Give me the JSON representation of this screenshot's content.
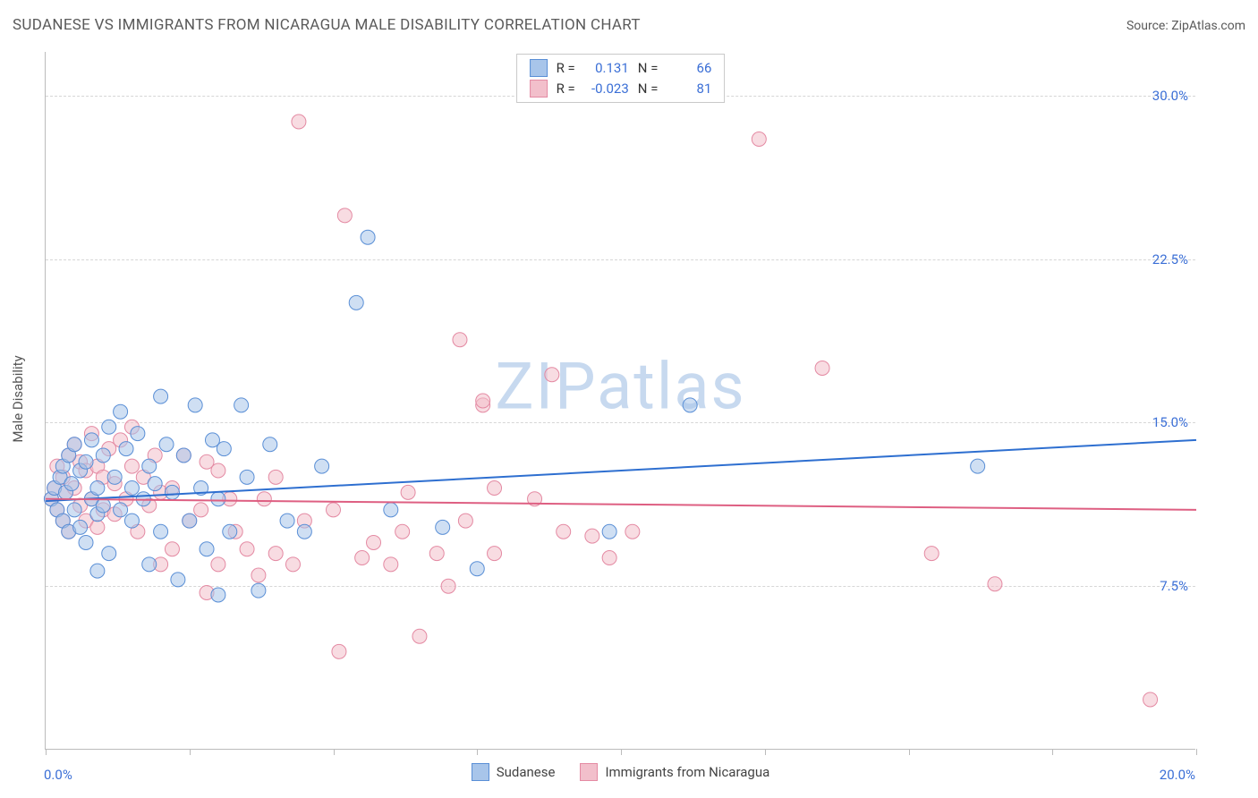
{
  "title": "SUDANESE VS IMMIGRANTS FROM NICARAGUA MALE DISABILITY CORRELATION CHART",
  "source": "Source: ZipAtlas.com",
  "watermark": "ZIPatlas",
  "y_axis_title": "Male Disability",
  "chart": {
    "type": "scatter",
    "xlim": [
      0,
      20
    ],
    "ylim": [
      0,
      32
    ],
    "x_ticks": [
      0,
      2.5,
      5,
      7.5,
      10,
      12.5,
      15,
      17.5,
      20
    ],
    "x_tick_labels_shown": {
      "0": "0.0%",
      "20": "20.0%"
    },
    "y_grid": [
      7.5,
      15.0,
      22.5,
      30.0
    ],
    "y_tick_labels": [
      "7.5%",
      "15.0%",
      "22.5%",
      "30.0%"
    ],
    "background_color": "#ffffff",
    "grid_color": "#d6d6d6",
    "axis_color": "#bbbbbb",
    "tick_label_color": "#3b6fd6",
    "marker_radius": 8,
    "marker_opacity": 0.55,
    "line_width": 2,
    "series": [
      {
        "name": "Sudanese",
        "color_fill": "#a8c5ea",
        "color_stroke": "#5a8fd6",
        "line_color": "#2e6fd0",
        "R": "0.131",
        "N": "66",
        "trend": {
          "x1": 0,
          "y1": 11.4,
          "x2": 20,
          "y2": 14.2
        },
        "points": [
          [
            0.1,
            11.5
          ],
          [
            0.15,
            12.0
          ],
          [
            0.2,
            11.0
          ],
          [
            0.25,
            12.5
          ],
          [
            0.3,
            10.5
          ],
          [
            0.3,
            13.0
          ],
          [
            0.35,
            11.8
          ],
          [
            0.4,
            10.0
          ],
          [
            0.4,
            13.5
          ],
          [
            0.45,
            12.2
          ],
          [
            0.5,
            11.0
          ],
          [
            0.5,
            14.0
          ],
          [
            0.6,
            10.2
          ],
          [
            0.6,
            12.8
          ],
          [
            0.7,
            13.2
          ],
          [
            0.7,
            9.5
          ],
          [
            0.8,
            11.5
          ],
          [
            0.8,
            14.2
          ],
          [
            0.9,
            12.0
          ],
          [
            0.9,
            10.8
          ],
          [
            1.0,
            13.5
          ],
          [
            1.0,
            11.2
          ],
          [
            1.1,
            14.8
          ],
          [
            1.1,
            9.0
          ],
          [
            1.2,
            12.5
          ],
          [
            1.3,
            11.0
          ],
          [
            1.3,
            15.5
          ],
          [
            1.4,
            13.8
          ],
          [
            1.5,
            10.5
          ],
          [
            1.5,
            12.0
          ],
          [
            1.6,
            14.5
          ],
          [
            1.7,
            11.5
          ],
          [
            1.8,
            8.5
          ],
          [
            1.8,
            13.0
          ],
          [
            1.9,
            12.2
          ],
          [
            2.0,
            10.0
          ],
          [
            2.0,
            16.2
          ],
          [
            2.1,
            14.0
          ],
          [
            2.2,
            11.8
          ],
          [
            2.3,
            7.8
          ],
          [
            2.4,
            13.5
          ],
          [
            2.5,
            10.5
          ],
          [
            2.6,
            15.8
          ],
          [
            2.7,
            12.0
          ],
          [
            2.8,
            9.2
          ],
          [
            2.9,
            14.2
          ],
          [
            3.0,
            7.1
          ],
          [
            3.0,
            11.5
          ],
          [
            3.1,
            13.8
          ],
          [
            3.2,
            10.0
          ],
          [
            3.4,
            15.8
          ],
          [
            3.5,
            12.5
          ],
          [
            3.7,
            7.3
          ],
          [
            3.9,
            14.0
          ],
          [
            4.2,
            10.5
          ],
          [
            4.5,
            10.0
          ],
          [
            4.8,
            13.0
          ],
          [
            5.4,
            20.5
          ],
          [
            5.6,
            23.5
          ],
          [
            6.0,
            11.0
          ],
          [
            6.9,
            10.2
          ],
          [
            7.5,
            8.3
          ],
          [
            9.8,
            10.0
          ],
          [
            11.2,
            15.8
          ],
          [
            16.2,
            13.0
          ],
          [
            0.9,
            8.2
          ]
        ]
      },
      {
        "name": "Immigrants from Nicaragua",
        "color_fill": "#f2bfcb",
        "color_stroke": "#e48aa3",
        "line_color": "#de5f82",
        "R": "-0.023",
        "N": "81",
        "trend": {
          "x1": 0,
          "y1": 11.5,
          "x2": 20,
          "y2": 11.0
        },
        "points": [
          [
            0.1,
            11.5
          ],
          [
            0.15,
            12.0
          ],
          [
            0.2,
            11.0
          ],
          [
            0.2,
            13.0
          ],
          [
            0.3,
            12.5
          ],
          [
            0.3,
            10.5
          ],
          [
            0.35,
            11.8
          ],
          [
            0.4,
            13.5
          ],
          [
            0.4,
            10.0
          ],
          [
            0.5,
            12.0
          ],
          [
            0.5,
            14.0
          ],
          [
            0.6,
            11.2
          ],
          [
            0.6,
            13.2
          ],
          [
            0.7,
            10.5
          ],
          [
            0.7,
            12.8
          ],
          [
            0.8,
            11.5
          ],
          [
            0.8,
            14.5
          ],
          [
            0.9,
            13.0
          ],
          [
            0.9,
            10.2
          ],
          [
            1.0,
            12.5
          ],
          [
            1.0,
            11.0
          ],
          [
            1.1,
            13.8
          ],
          [
            1.2,
            10.8
          ],
          [
            1.2,
            12.2
          ],
          [
            1.3,
            14.2
          ],
          [
            1.4,
            11.5
          ],
          [
            1.5,
            13.0
          ],
          [
            1.5,
            14.8
          ],
          [
            1.6,
            10.0
          ],
          [
            1.7,
            12.5
          ],
          [
            1.8,
            11.2
          ],
          [
            1.9,
            13.5
          ],
          [
            2.0,
            8.5
          ],
          [
            2.0,
            11.8
          ],
          [
            2.2,
            9.2
          ],
          [
            2.2,
            12.0
          ],
          [
            2.4,
            13.5
          ],
          [
            2.5,
            10.5
          ],
          [
            2.7,
            11.0
          ],
          [
            2.8,
            13.2
          ],
          [
            2.8,
            7.2
          ],
          [
            3.0,
            8.5
          ],
          [
            3.0,
            12.8
          ],
          [
            3.2,
            11.5
          ],
          [
            3.3,
            10.0
          ],
          [
            3.5,
            9.2
          ],
          [
            3.7,
            8.0
          ],
          [
            3.8,
            11.5
          ],
          [
            4.0,
            9.0
          ],
          [
            4.0,
            12.5
          ],
          [
            4.3,
            8.5
          ],
          [
            4.4,
            28.8
          ],
          [
            4.5,
            10.5
          ],
          [
            5.0,
            11.0
          ],
          [
            5.1,
            4.5
          ],
          [
            5.2,
            24.5
          ],
          [
            5.5,
            8.8
          ],
          [
            5.7,
            9.5
          ],
          [
            6.0,
            8.5
          ],
          [
            6.2,
            10.0
          ],
          [
            6.3,
            11.8
          ],
          [
            6.5,
            5.2
          ],
          [
            6.8,
            9.0
          ],
          [
            7.0,
            7.5
          ],
          [
            7.2,
            18.8
          ],
          [
            7.3,
            10.5
          ],
          [
            7.6,
            15.8
          ],
          [
            7.6,
            16.0
          ],
          [
            7.8,
            9.0
          ],
          [
            7.8,
            12.0
          ],
          [
            8.5,
            11.5
          ],
          [
            8.8,
            17.2
          ],
          [
            9.0,
            10.0
          ],
          [
            9.5,
            9.8
          ],
          [
            9.8,
            8.8
          ],
          [
            10.2,
            10.0
          ],
          [
            12.4,
            28.0
          ],
          [
            13.5,
            17.5
          ],
          [
            15.4,
            9.0
          ],
          [
            16.5,
            7.6
          ],
          [
            19.2,
            2.3
          ]
        ]
      }
    ]
  },
  "legend_stats_labels": {
    "R": "R =",
    "N": "N ="
  },
  "bottom_legend": [
    "Sudanese",
    "Immigrants from Nicaragua"
  ]
}
